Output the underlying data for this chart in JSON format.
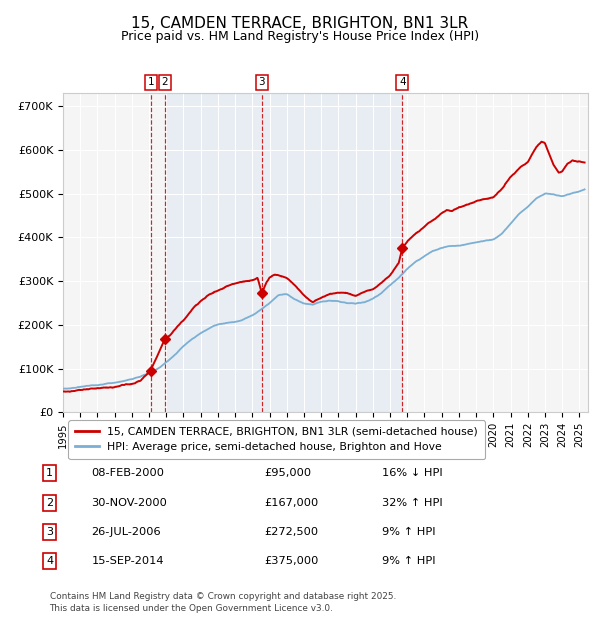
{
  "title": "15, CAMDEN TERRACE, BRIGHTON, BN1 3LR",
  "subtitle": "Price paid vs. HM Land Registry's House Price Index (HPI)",
  "title_fontsize": 11,
  "subtitle_fontsize": 9,
  "hpi_color": "#7bafd4",
  "price_color": "#cc0000",
  "bg_color": "#ffffff",
  "transactions": [
    {
      "id": 1,
      "date": "08-FEB-2000",
      "year": 2000.1,
      "price": 95000,
      "pct": "16%",
      "dir": "↓"
    },
    {
      "id": 2,
      "date": "30-NOV-2000",
      "year": 2000.92,
      "price": 167000,
      "pct": "32%",
      "dir": "↑"
    },
    {
      "id": 3,
      "date": "26-JUL-2006",
      "year": 2006.55,
      "price": 272500,
      "pct": "9%",
      "dir": "↑"
    },
    {
      "id": 4,
      "date": "15-SEP-2014",
      "year": 2014.71,
      "price": 375000,
      "pct": "9%",
      "dir": "↑"
    }
  ],
  "ylabel_ticks": [
    "£0",
    "£100K",
    "£200K",
    "£300K",
    "£400K",
    "£500K",
    "£600K",
    "£700K"
  ],
  "ylabel_values": [
    0,
    100000,
    200000,
    300000,
    400000,
    500000,
    600000,
    700000
  ],
  "ylim": [
    0,
    730000
  ],
  "xlim_start": 1995.0,
  "xlim_end": 2025.5,
  "legend_price_label": "15, CAMDEN TERRACE, BRIGHTON, BN1 3LR (semi-detached house)",
  "legend_hpi_label": "HPI: Average price, semi-detached house, Brighton and Hove",
  "footer": "Contains HM Land Registry data © Crown copyright and database right 2025.\nThis data is licensed under the Open Government Licence v3.0.",
  "xtick_years": [
    1995,
    1996,
    1997,
    1998,
    1999,
    2000,
    2001,
    2002,
    2003,
    2004,
    2005,
    2006,
    2007,
    2008,
    2009,
    2010,
    2011,
    2012,
    2013,
    2014,
    2015,
    2016,
    2017,
    2018,
    2019,
    2020,
    2021,
    2022,
    2023,
    2024,
    2025
  ]
}
